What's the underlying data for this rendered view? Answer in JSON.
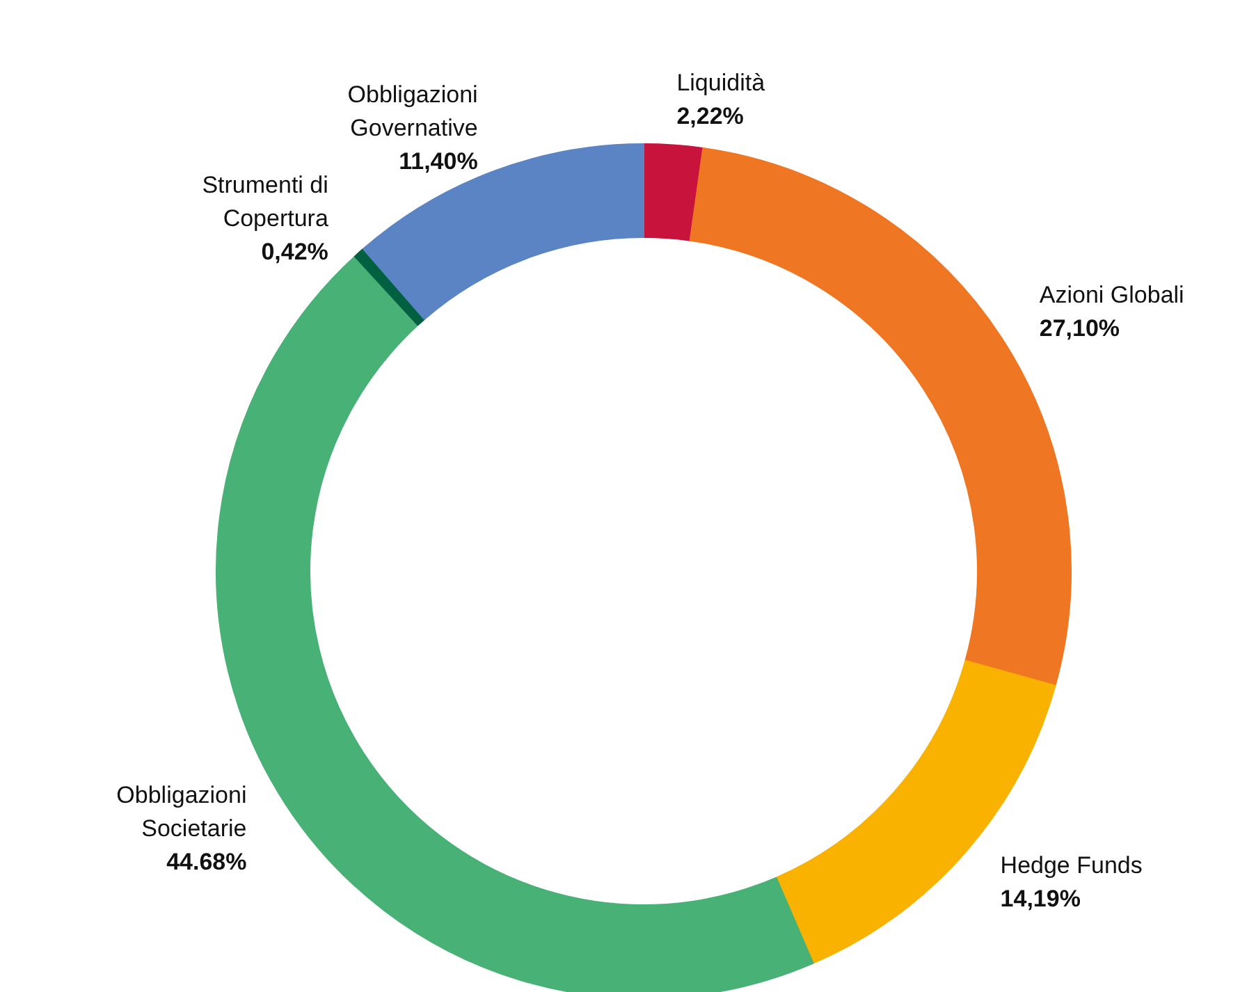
{
  "chart_data": {
    "type": "donut",
    "categories": [
      "Liquidità",
      "Azioni Globali",
      "Hedge Funds",
      "Obbligazioni Societarie",
      "Strumenti di Copertura",
      "Obbligazioni Governative"
    ],
    "values": [
      2.22,
      27.1,
      14.19,
      44.68,
      0.42,
      11.4
    ],
    "colors": [
      "#c8143c",
      "#ef7622",
      "#f9b200",
      "#48b176",
      "#006040",
      "#5b84c4"
    ],
    "value_labels": [
      "2,22%",
      "27,10%",
      "14,19%",
      "44.68%",
      "0,42%",
      "11,40%"
    ]
  }
}
